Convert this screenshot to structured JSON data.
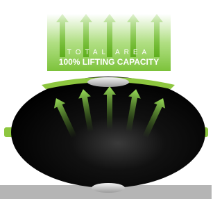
{
  "graphic": {
    "label_top": "TOTAL AREA",
    "label_bottom": "100% LIFTING CAPACITY"
  }
}
